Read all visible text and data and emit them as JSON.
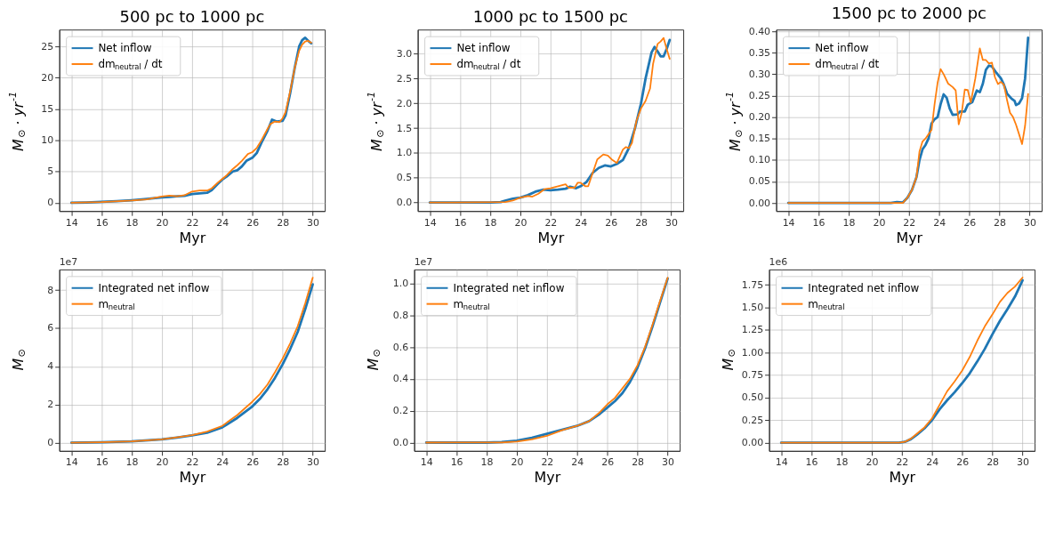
{
  "chart_data": [
    {
      "type": "line",
      "title": "500 pc to 1000 pc",
      "xlabel": "Myr",
      "ylabel": "M$_{⊙}$ · yr$^{-1}$",
      "xlim": [
        13.2,
        30.8
      ],
      "ylim": [
        -1.32,
        27.7
      ],
      "xticks": [
        14,
        16,
        18,
        20,
        22,
        24,
        26,
        28,
        30
      ],
      "yticks": [
        0,
        5,
        10,
        15,
        20,
        25
      ],
      "grid": true,
      "legend": "top left",
      "line_style": "solid",
      "series": [
        {
          "name": "Net inflow",
          "color": "#1f77b4",
          "x": [
            14,
            15,
            16,
            17,
            18,
            19,
            20,
            20.5,
            21,
            21.5,
            22,
            22.5,
            23,
            23.3,
            23.7,
            24,
            24.3,
            24.7,
            25,
            25.3,
            25.6,
            26,
            26.3,
            26.6,
            27,
            27.3,
            27.6,
            28,
            28.2,
            28.5,
            28.8,
            29.1,
            29.3,
            29.5,
            29.7,
            29.9
          ],
          "values": [
            0,
            0.05,
            0.15,
            0.25,
            0.4,
            0.6,
            0.85,
            0.95,
            1.05,
            1.1,
            1.4,
            1.5,
            1.6,
            2.0,
            3.0,
            3.7,
            4.2,
            5.0,
            5.2,
            5.8,
            6.7,
            7.2,
            8.0,
            9.6,
            11.5,
            13.3,
            13.0,
            13.1,
            14.0,
            17.5,
            21.5,
            25.0,
            26.0,
            26.4,
            25.9,
            25.5
          ]
        },
        {
          "name": "dm$_{neutral}$ / dt",
          "color": "#ff7f0e",
          "x": [
            14,
            16,
            18,
            19,
            20,
            20.5,
            21,
            21.5,
            22,
            22.5,
            23,
            23.3,
            23.7,
            24,
            24.3,
            24.7,
            25,
            25.3,
            25.7,
            26,
            26.3,
            26.6,
            27,
            27.2,
            27.5,
            27.8,
            28,
            28.2,
            28.5,
            28.8,
            29.1,
            29.3,
            29.5,
            29.7,
            29.9
          ],
          "values": [
            0,
            0.1,
            0.35,
            0.55,
            1.0,
            1.15,
            1.05,
            1.2,
            1.8,
            1.95,
            1.95,
            2.3,
            3.2,
            3.8,
            4.4,
            5.4,
            6.0,
            6.7,
            7.8,
            8.1,
            8.8,
            10.0,
            11.8,
            12.6,
            13.0,
            12.9,
            13.5,
            14.5,
            17.8,
            21.5,
            24.3,
            25.3,
            25.8,
            25.9,
            25.6
          ]
        }
      ]
    },
    {
      "type": "line",
      "title": "1000 pc to 1500 pc",
      "xlabel": "Myr",
      "ylabel": "M$_{⊙}$ · yr$^{-1}$",
      "xlim": [
        13.2,
        30.8
      ],
      "ylim": [
        -0.17,
        3.49
      ],
      "xticks": [
        14,
        16,
        18,
        20,
        22,
        24,
        26,
        28,
        30
      ],
      "yticks": [
        {
          "value": 0,
          "label": "0.0"
        },
        0.5,
        {
          "value": 1,
          "label": "1.0"
        },
        1.5,
        {
          "value": 2,
          "label": "2.0"
        },
        2.5,
        {
          "value": 3,
          "label": "3.0"
        }
      ],
      "grid": true,
      "legend": "top left",
      "line_style": "solid",
      "series": [
        {
          "name": "Net inflow",
          "color": "#1f77b4",
          "x": [
            14,
            18,
            18.7,
            19,
            19.5,
            20,
            20.5,
            21,
            21.5,
            22,
            22.5,
            23,
            23.3,
            23.7,
            24,
            24.4,
            24.8,
            25.2,
            25.6,
            26,
            26.4,
            26.8,
            27.2,
            27.6,
            28,
            28.3,
            28.7,
            28.9,
            29.1,
            29.3,
            29.5,
            29.7,
            29.9
          ],
          "values": [
            0,
            0,
            0.01,
            0.04,
            0.08,
            0.1,
            0.15,
            0.22,
            0.26,
            0.25,
            0.26,
            0.28,
            0.32,
            0.29,
            0.33,
            0.42,
            0.6,
            0.7,
            0.75,
            0.73,
            0.78,
            0.86,
            1.1,
            1.5,
            2.0,
            2.5,
            3.03,
            3.14,
            3.05,
            2.95,
            2.95,
            3.1,
            3.28
          ]
        },
        {
          "name": "dm$_{neutral}$ / dt",
          "color": "#ff7f0e",
          "x": [
            14,
            19,
            19.5,
            20,
            20.5,
            20.8,
            21.2,
            21.6,
            22,
            22.5,
            23,
            23.2,
            23.6,
            23.8,
            24,
            24.3,
            24.5,
            24.8,
            25.1,
            25.5,
            25.8,
            26.1,
            26.4,
            26.8,
            27,
            27.2,
            27.4,
            27.7,
            28,
            28.3,
            28.6,
            28.8,
            29.1,
            29.3,
            29.5,
            29.7,
            29.9
          ],
          "values": [
            0,
            0.01,
            0.04,
            0.1,
            0.13,
            0.12,
            0.18,
            0.27,
            0.29,
            0.33,
            0.37,
            0.3,
            0.3,
            0.4,
            0.4,
            0.33,
            0.33,
            0.6,
            0.87,
            0.97,
            0.95,
            0.86,
            0.8,
            1.07,
            1.12,
            1.1,
            1.2,
            1.65,
            1.9,
            2.05,
            2.3,
            2.8,
            3.2,
            3.25,
            3.32,
            3.1,
            2.9
          ]
        }
      ]
    },
    {
      "type": "line",
      "title": "1500 pc to 2000 pc",
      "xlabel": "Myr",
      "ylabel": "M$_{⊙}$ · yr$^{-1}$",
      "xlim": [
        13.2,
        30.8
      ],
      "ylim": [
        -0.019,
        0.404
      ],
      "xticks": [
        14,
        16,
        18,
        20,
        22,
        24,
        26,
        28,
        30
      ],
      "yticks": [
        {
          "value": 0,
          "label": "0.00"
        },
        0.05,
        {
          "value": 0.1,
          "label": "0.10"
        },
        0.15,
        {
          "value": 0.2,
          "label": "0.20"
        },
        0.25,
        {
          "value": 0.3,
          "label": "0.30"
        },
        0.35,
        {
          "value": 0.4,
          "label": "0.40"
        }
      ],
      "grid": true,
      "legend": "top left",
      "line_style": "solid",
      "series": [
        {
          "name": "Net inflow",
          "color": "#1f77b4",
          "x": [
            14,
            20.8,
            21.2,
            21.6,
            21.9,
            22.2,
            22.5,
            22.7,
            22.9,
            23.1,
            23.3,
            23.5,
            23.7,
            23.9,
            24.1,
            24.3,
            24.5,
            24.7,
            24.9,
            25.2,
            25.4,
            25.7,
            25.9,
            26.2,
            26.5,
            26.7,
            26.9,
            27.1,
            27.3,
            27.5,
            27.8,
            28.1,
            28.3,
            28.5,
            28.8,
            29,
            29.1,
            29.3,
            29.5,
            29.7,
            29.9
          ],
          "values": [
            0,
            0,
            0.002,
            0.001,
            0.012,
            0.03,
            0.06,
            0.1,
            0.125,
            0.135,
            0.15,
            0.185,
            0.195,
            0.2,
            0.23,
            0.253,
            0.245,
            0.22,
            0.205,
            0.206,
            0.213,
            0.213,
            0.229,
            0.235,
            0.262,
            0.258,
            0.278,
            0.31,
            0.32,
            0.318,
            0.303,
            0.29,
            0.275,
            0.255,
            0.243,
            0.238,
            0.228,
            0.232,
            0.244,
            0.29,
            0.385
          ]
        },
        {
          "name": "dm$_{neutral}$ / dt",
          "color": "#ff7f0e",
          "x": [
            14,
            21.6,
            21.9,
            22.2,
            22.5,
            22.7,
            22.9,
            23.1,
            23.3,
            23.5,
            23.7,
            23.9,
            24.1,
            24.3,
            24.6,
            24.9,
            25.1,
            25.3,
            25.5,
            25.7,
            25.9,
            26.1,
            26.4,
            26.7,
            26.9,
            27.1,
            27.3,
            27.5,
            27.7,
            27.9,
            28.1,
            28.3,
            28.5,
            28.7,
            28.9,
            29.1,
            29.3,
            29.5,
            29.7,
            29.9
          ],
          "values": [
            0,
            0,
            0.012,
            0.03,
            0.06,
            0.12,
            0.143,
            0.15,
            0.16,
            0.17,
            0.23,
            0.28,
            0.312,
            0.3,
            0.278,
            0.27,
            0.262,
            0.183,
            0.21,
            0.264,
            0.263,
            0.234,
            0.29,
            0.36,
            0.333,
            0.333,
            0.325,
            0.327,
            0.293,
            0.277,
            0.282,
            0.275,
            0.24,
            0.21,
            0.2,
            0.182,
            0.16,
            0.137,
            0.18,
            0.254
          ]
        }
      ]
    },
    {
      "type": "line",
      "xlabel": "Myr",
      "ylabel": "M$_{⊙}$",
      "annotations": [
        "1e7"
      ],
      "xlim": [
        13.2,
        30.8
      ],
      "ylim": [
        -0.43,
        9.08
      ],
      "xticks": [
        14,
        16,
        18,
        20,
        22,
        24,
        26,
        28,
        30
      ],
      "yticks": [
        0,
        2,
        4,
        6,
        8
      ],
      "grid": true,
      "legend": "top left",
      "line_style": "solid",
      "series": [
        {
          "name": "Integrated net inflow",
          "color": "#1f77b4",
          "x": [
            14,
            16,
            18,
            20,
            21,
            22,
            23,
            24,
            25,
            26,
            26.5,
            27,
            27.5,
            28,
            28.5,
            29,
            29.5,
            30
          ],
          "values": [
            0,
            0.02,
            0.07,
            0.17,
            0.27,
            0.38,
            0.52,
            0.8,
            1.3,
            1.9,
            2.3,
            2.8,
            3.4,
            4.1,
            4.9,
            5.8,
            7.0,
            8.3
          ]
        },
        {
          "name": "m$_{neutral}$",
          "color": "#ff7f0e",
          "x": [
            14,
            16,
            18,
            20,
            21,
            22,
            23,
            24,
            25,
            26,
            26.5,
            27,
            27.5,
            28,
            28.5,
            29,
            29.5,
            30
          ],
          "values": [
            0,
            0.02,
            0.07,
            0.17,
            0.28,
            0.4,
            0.58,
            0.88,
            1.45,
            2.15,
            2.55,
            3.05,
            3.7,
            4.4,
            5.2,
            6.1,
            7.3,
            8.65
          ]
        }
      ]
    },
    {
      "type": "line",
      "xlabel": "Myr",
      "ylabel": "M$_{⊙}$",
      "annotations": [
        "1e7"
      ],
      "xlim": [
        13.2,
        30.8
      ],
      "ylim": [
        -0.052,
        1.087
      ],
      "xticks": [
        14,
        16,
        18,
        20,
        22,
        24,
        26,
        28,
        30
      ],
      "yticks": [
        {
          "value": 0,
          "label": "0.0"
        },
        0.2,
        0.4,
        0.6,
        0.8,
        {
          "value": 1,
          "label": "1.0"
        }
      ],
      "grid": true,
      "legend": "top left",
      "line_style": "solid",
      "series": [
        {
          "name": "Integrated net inflow",
          "color": "#1f77b4",
          "x": [
            14,
            18,
            19,
            20,
            21,
            22,
            23,
            24,
            24.8,
            25.5,
            26,
            26.5,
            27,
            27.5,
            28,
            28.5,
            29,
            29.5,
            30
          ],
          "values": [
            0,
            0,
            0.003,
            0.012,
            0.03,
            0.055,
            0.08,
            0.105,
            0.135,
            0.18,
            0.22,
            0.26,
            0.31,
            0.38,
            0.47,
            0.59,
            0.73,
            0.88,
            1.03
          ]
        },
        {
          "name": "m$_{neutral}$",
          "color": "#ff7f0e",
          "x": [
            14,
            19,
            20,
            21,
            22,
            23,
            24,
            24.8,
            25.5,
            26,
            26.5,
            27,
            27.5,
            28,
            28.5,
            29,
            29.5,
            30
          ],
          "values": [
            0,
            0.001,
            0.006,
            0.02,
            0.042,
            0.078,
            0.105,
            0.135,
            0.19,
            0.24,
            0.28,
            0.34,
            0.4,
            0.485,
            0.6,
            0.74,
            0.89,
            1.035
          ]
        }
      ]
    },
    {
      "type": "line",
      "xlabel": "Myr",
      "ylabel": "M$_{⊙}$",
      "annotations": [
        "1e6"
      ],
      "xlim": [
        13.2,
        30.8
      ],
      "ylim": [
        -0.09,
        1.92
      ],
      "xticks": [
        14,
        16,
        18,
        20,
        22,
        24,
        26,
        28,
        30
      ],
      "yticks": [
        {
          "value": 0,
          "label": "0.00"
        },
        0.25,
        {
          "value": 0.5,
          "label": "0.50"
        },
        0.75,
        {
          "value": 1,
          "label": "1.00"
        },
        1.25,
        {
          "value": 1.5,
          "label": "1.50"
        },
        1.75
      ],
      "grid": true,
      "legend": "top left",
      "line_style": "solid",
      "series": [
        {
          "name": "Integrated net inflow",
          "color": "#1f77b4",
          "x": [
            14,
            21.8,
            22.2,
            22.6,
            23,
            23.5,
            24,
            24.5,
            25,
            25.5,
            26,
            26.5,
            27,
            27.5,
            28,
            28.5,
            29,
            29.5,
            30
          ],
          "values": [
            0,
            0,
            0.01,
            0.04,
            0.09,
            0.16,
            0.25,
            0.37,
            0.47,
            0.56,
            0.66,
            0.77,
            0.9,
            1.04,
            1.2,
            1.35,
            1.48,
            1.62,
            1.8
          ]
        },
        {
          "name": "m$_{neutral}$",
          "color": "#ff7f0e",
          "x": [
            14,
            21.8,
            22.2,
            22.6,
            23,
            23.5,
            24,
            24.5,
            25,
            25.5,
            26,
            26.5,
            27,
            27.5,
            28,
            28.5,
            29,
            29.5,
            30
          ],
          "values": [
            0,
            0,
            0.01,
            0.045,
            0.1,
            0.17,
            0.27,
            0.42,
            0.57,
            0.68,
            0.8,
            0.95,
            1.13,
            1.29,
            1.42,
            1.56,
            1.66,
            1.73,
            1.83
          ]
        }
      ]
    }
  ]
}
